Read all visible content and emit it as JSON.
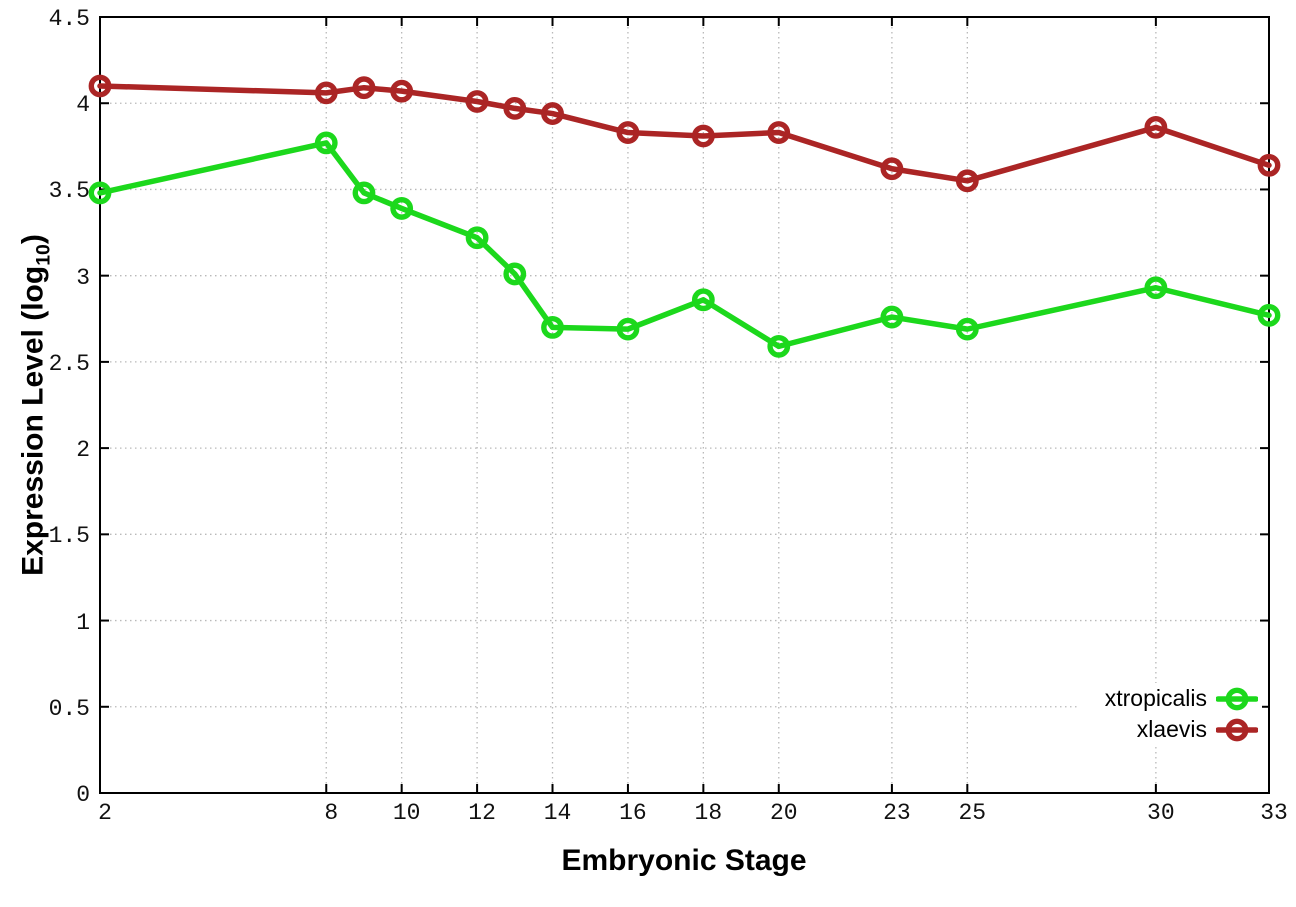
{
  "chart_data": {
    "type": "line",
    "title": "",
    "xlabel": "Embryonic Stage",
    "ylabel": "Expression Level (log10)",
    "ylabel_parts": {
      "main": "Expression Level (log",
      "sub": "10",
      "suffix": ")"
    },
    "x": [
      2,
      8,
      9,
      10,
      12,
      13,
      14,
      16,
      18,
      20,
      23,
      25,
      30,
      33
    ],
    "series": [
      {
        "name": "xtropicalis",
        "color": "#1cd81c",
        "values": [
          3.48,
          3.77,
          3.48,
          3.39,
          3.22,
          3.01,
          2.7,
          2.69,
          2.86,
          2.59,
          2.76,
          2.69,
          2.93,
          2.77
        ]
      },
      {
        "name": "xlaevis",
        "color": "#ab2525",
        "values": [
          4.1,
          4.06,
          4.09,
          4.07,
          4.01,
          3.97,
          3.94,
          3.83,
          3.81,
          3.83,
          3.62,
          3.55,
          3.86,
          3.64
        ]
      }
    ],
    "x_ticks": [
      2,
      8,
      10,
      12,
      14,
      16,
      18,
      20,
      23,
      25,
      30,
      33
    ],
    "y_ticks": [
      0,
      0.5,
      1,
      1.5,
      2,
      2.5,
      3,
      3.5,
      4,
      4.5
    ],
    "xlim": [
      2,
      33
    ],
    "ylim": [
      0,
      4.5
    ],
    "grid": true,
    "legend_position": "bottom-right",
    "axis_color": "#000000",
    "grid_color": "#b9b9b9",
    "background": "#ffffff"
  }
}
